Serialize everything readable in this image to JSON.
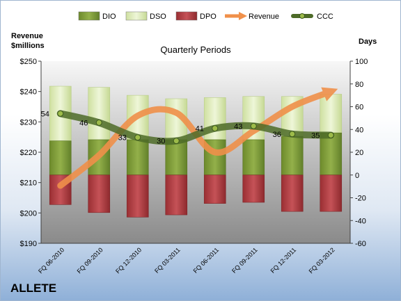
{
  "company": "ALLETE",
  "chart_data": {
    "type": "bar",
    "title": "Quarterly Periods",
    "y_left_label": "Revenue $millions",
    "y_right_label": "Days",
    "y_left_ticks": [
      "$190",
      "$200",
      "$210",
      "$220",
      "$230",
      "$240",
      "$250"
    ],
    "y_left_range": [
      190,
      250
    ],
    "y_right_ticks": [
      "-60",
      "-40",
      "-20",
      "0",
      "20",
      "40",
      "60",
      "80",
      "100"
    ],
    "y_right_range": [
      -60,
      100
    ],
    "categories": [
      "FQ 06-2010",
      "FQ 09-2010",
      "FQ 12-2010",
      "FQ 03-2011",
      "FQ 06-2011",
      "FQ 09-2011",
      "FQ 12-2011",
      "FQ 03-2012"
    ],
    "legend": [
      "DIO",
      "DSO",
      "DPO",
      "Revenue",
      "CCC"
    ],
    "legend_position": "top",
    "series": [
      {
        "name": "DIO",
        "axis": "right",
        "values": [
          30,
          31,
          31,
          31,
          31,
          31,
          34,
          37
        ]
      },
      {
        "name": "DSO",
        "axis": "right",
        "values": [
          48,
          46,
          39,
          36,
          37,
          38,
          35,
          34
        ]
      },
      {
        "name": "DPO",
        "axis": "right",
        "values": [
          -26,
          -33,
          -37,
          -35,
          -25,
          -24,
          -32,
          -32
        ]
      },
      {
        "name": "Revenue",
        "axis": "left",
        "values": [
          209,
          219,
          232,
          233,
          220,
          227,
          235,
          240
        ]
      },
      {
        "name": "CCC",
        "axis": "right",
        "values": [
          54,
          46,
          33,
          30,
          41,
          43,
          36,
          35
        ]
      }
    ],
    "ccc_labels": [
      "54",
      "46",
      "33",
      "30",
      "41",
      "43",
      "36",
      "35"
    ],
    "colors": {
      "DIO": "#7e9c36",
      "DSO": "#d9e8b0",
      "DPO": "#b03b3f",
      "Revenue": "#f0904a",
      "CCC": "#4d6b28",
      "plot_top": "#f4f4f4",
      "plot_bottom": "#8c8c8c"
    },
    "grid": false
  }
}
